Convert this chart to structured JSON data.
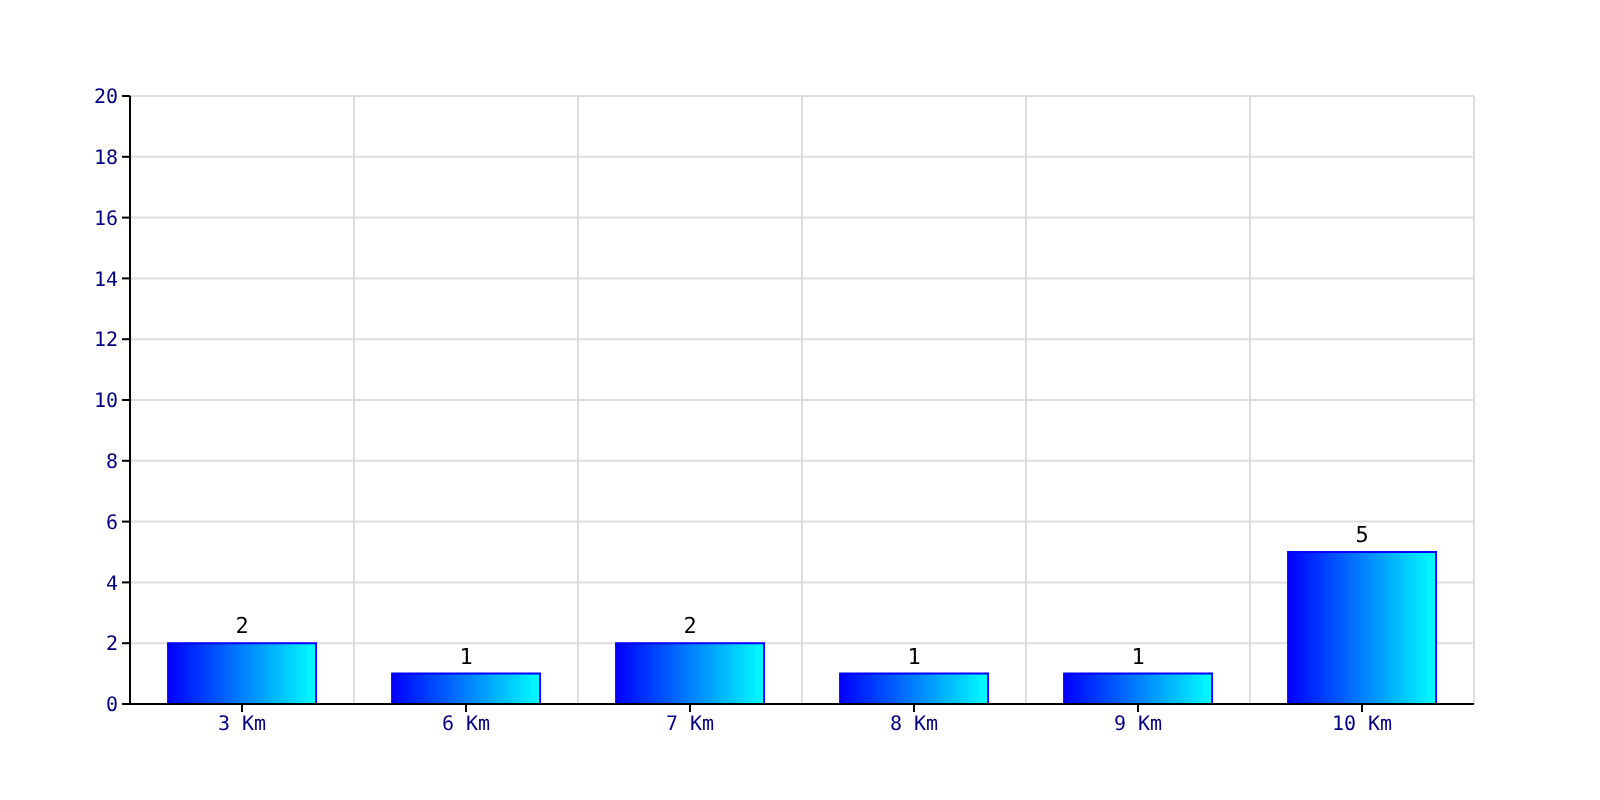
{
  "chart_data": {
    "type": "bar",
    "categories": [
      "3 Km",
      "6 Km",
      "7 Km",
      "8 Km",
      "9 Km",
      "10 Km"
    ],
    "values": [
      2,
      1,
      2,
      1,
      1,
      5
    ],
    "color": "#0000ff",
    "ylim": [
      0,
      20
    ],
    "yticks": [
      0,
      2,
      4,
      6,
      8,
      10,
      12,
      14,
      16,
      18,
      20
    ],
    "grid": true,
    "data_labels": true
  }
}
